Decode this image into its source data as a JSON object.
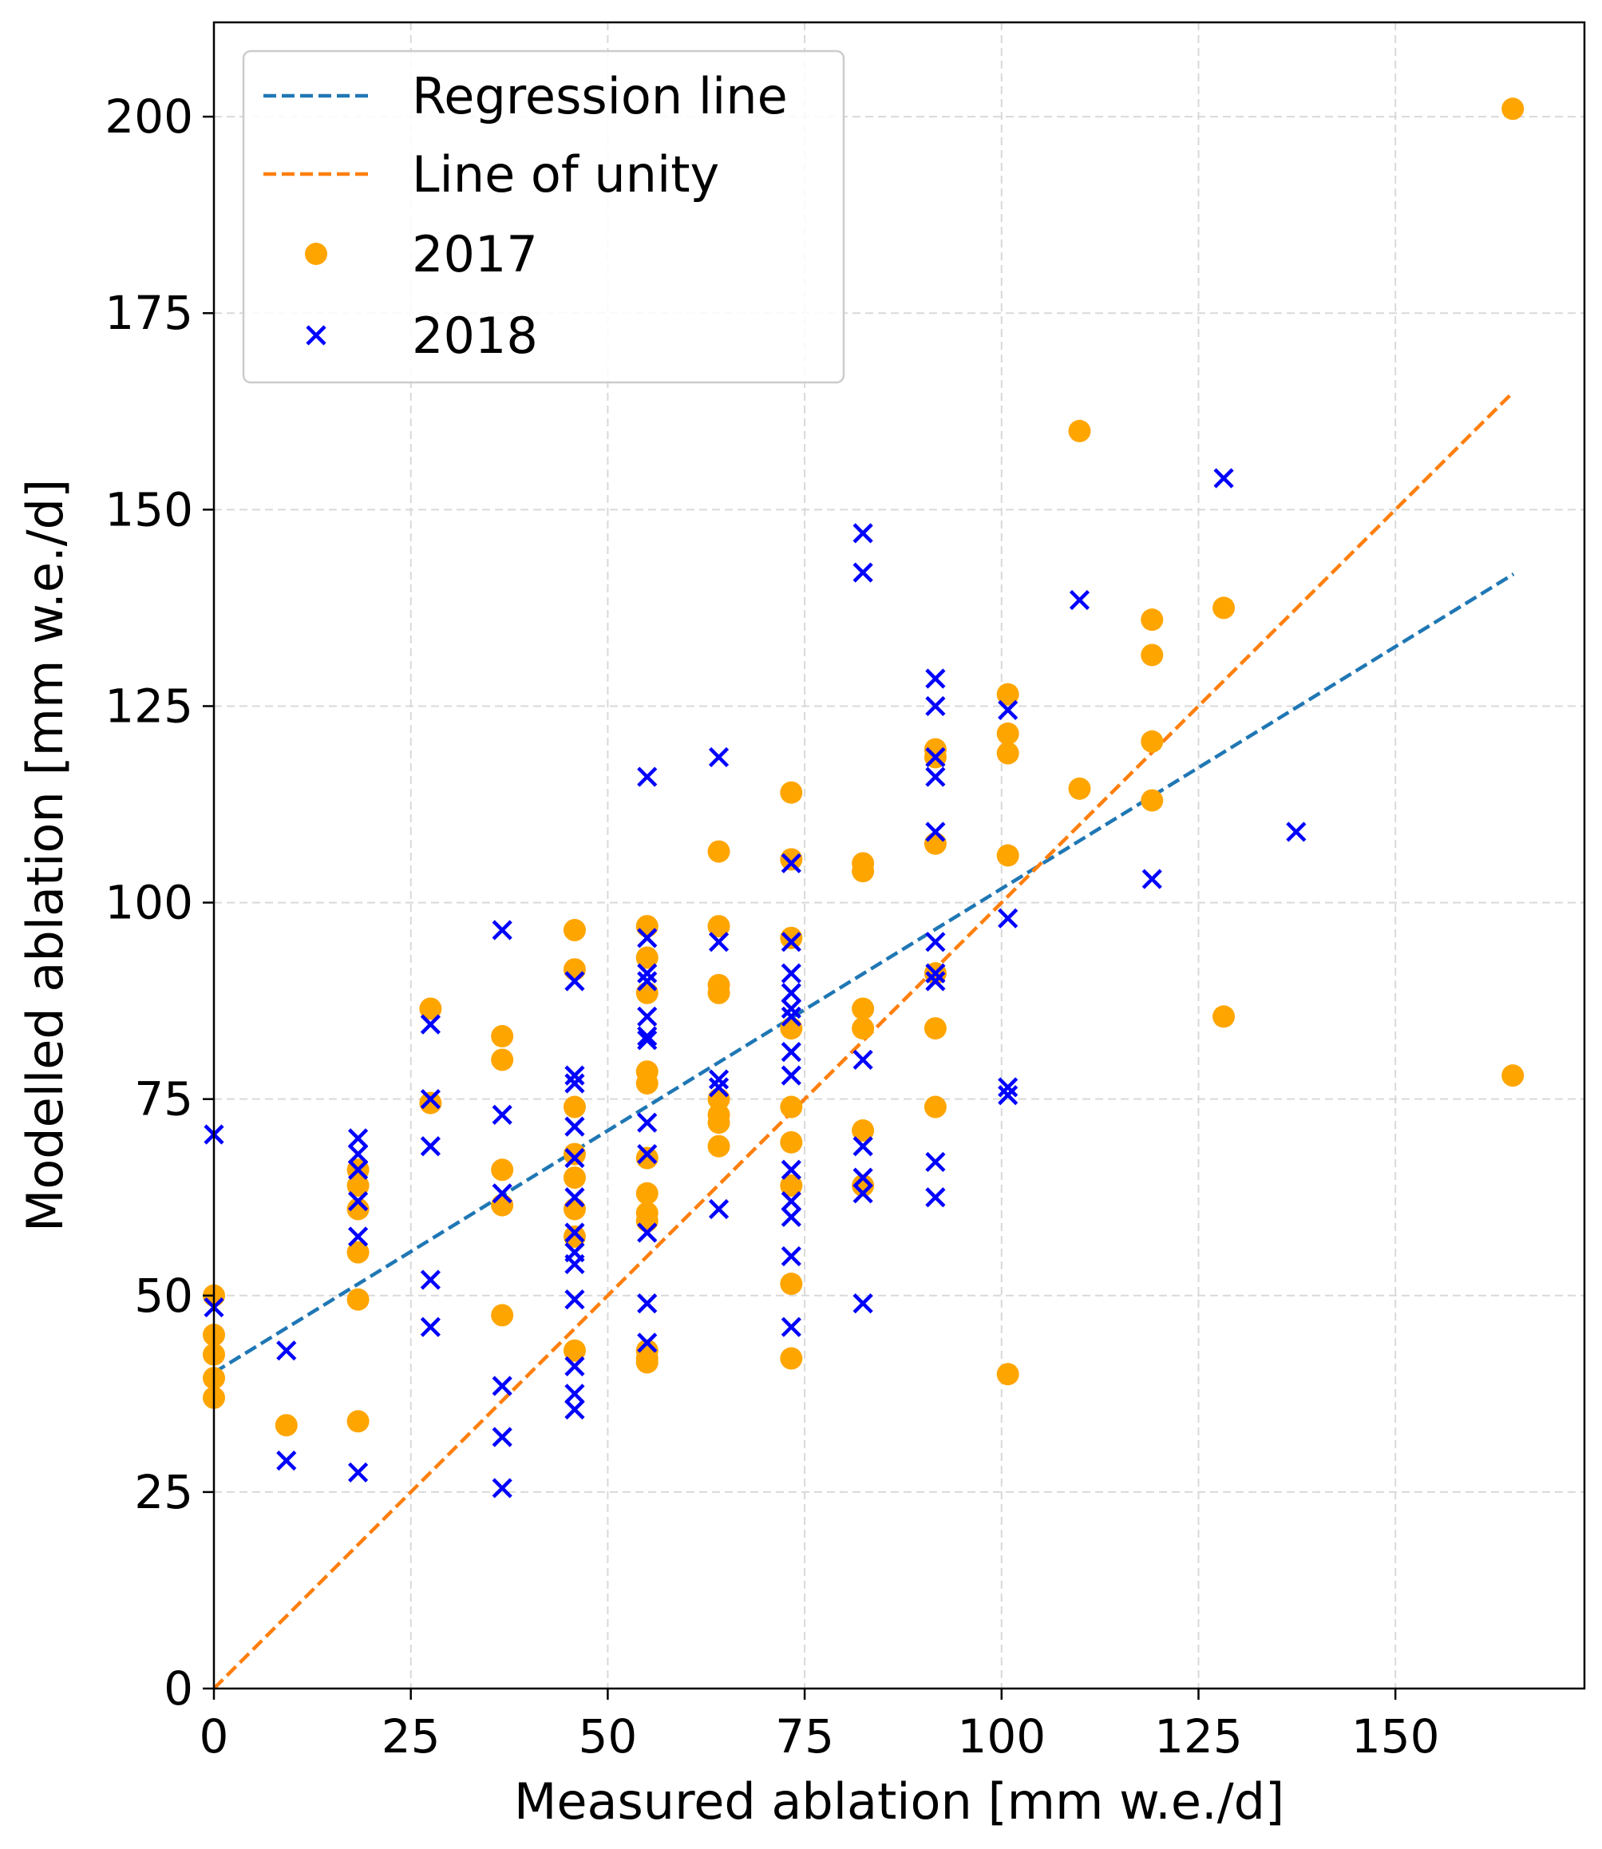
{
  "chart_data": {
    "type": "scatter",
    "xlabel": "Measured ablation [mm w.e./d]",
    "ylabel": "Modelled ablation [mm w.e./d]",
    "xlim": [
      0,
      174
    ],
    "ylim": [
      0,
      212
    ],
    "xticks": [
      0,
      25,
      50,
      75,
      100,
      125,
      150
    ],
    "yticks": [
      0,
      25,
      50,
      75,
      100,
      125,
      150,
      175,
      200
    ],
    "grid": true,
    "legend_position": "top-left",
    "colors": {
      "regression": "#1f77b4",
      "unity": "#ff7f0e",
      "s2017": "#ffa500",
      "s2018": "#0000ff",
      "grid": "#d9d9d9"
    },
    "lines": [
      {
        "name": "Regression line",
        "style": "dashed",
        "x": [
          0,
          165
        ],
        "y": [
          40.2,
          141.8
        ]
      },
      {
        "name": "Line of unity",
        "style": "dashed",
        "x": [
          0,
          165
        ],
        "y": [
          0,
          165
        ]
      }
    ],
    "series": [
      {
        "name": "2017",
        "marker": "circle",
        "points": [
          [
            0,
            50
          ],
          [
            0,
            45
          ],
          [
            0,
            42.5
          ],
          [
            0,
            39.5
          ],
          [
            0,
            37
          ],
          [
            9.2,
            33.5
          ],
          [
            18.3,
            66
          ],
          [
            18.3,
            64
          ],
          [
            18.3,
            61
          ],
          [
            18.3,
            55.5
          ],
          [
            18.3,
            49.5
          ],
          [
            18.3,
            34
          ],
          [
            27.5,
            86.5
          ],
          [
            27.5,
            74.5
          ],
          [
            36.6,
            83
          ],
          [
            36.6,
            80
          ],
          [
            36.6,
            66
          ],
          [
            36.6,
            61.5
          ],
          [
            36.6,
            47.5
          ],
          [
            45.8,
            96.5
          ],
          [
            45.8,
            91.5
          ],
          [
            45.8,
            74
          ],
          [
            45.8,
            68
          ],
          [
            45.8,
            65
          ],
          [
            45.8,
            61
          ],
          [
            45.8,
            57.5
          ],
          [
            45.8,
            43
          ],
          [
            55,
            97
          ],
          [
            55,
            93
          ],
          [
            55,
            88.5
          ],
          [
            55,
            78.5
          ],
          [
            55,
            77
          ],
          [
            55,
            67.5
          ],
          [
            55,
            63
          ],
          [
            55,
            60.5
          ],
          [
            55,
            59.5
          ],
          [
            55,
            43
          ],
          [
            55,
            42
          ],
          [
            55,
            41.5
          ],
          [
            64.1,
            106.5
          ],
          [
            64.1,
            97
          ],
          [
            64.1,
            89.5
          ],
          [
            64.1,
            88.5
          ],
          [
            64.1,
            75
          ],
          [
            64.1,
            73
          ],
          [
            64.1,
            72
          ],
          [
            64.1,
            69
          ],
          [
            73.3,
            114
          ],
          [
            73.3,
            105.5
          ],
          [
            73.3,
            95.5
          ],
          [
            73.3,
            84
          ],
          [
            73.3,
            74
          ],
          [
            73.3,
            69.5
          ],
          [
            73.3,
            64
          ],
          [
            73.3,
            51.5
          ],
          [
            73.3,
            42
          ],
          [
            82.4,
            105
          ],
          [
            82.4,
            104
          ],
          [
            82.4,
            86.5
          ],
          [
            82.4,
            84
          ],
          [
            82.4,
            71
          ],
          [
            82.4,
            64
          ],
          [
            91.6,
            119.5
          ],
          [
            91.6,
            118.5
          ],
          [
            91.6,
            107.5
          ],
          [
            91.6,
            91
          ],
          [
            91.6,
            84
          ],
          [
            91.6,
            74
          ],
          [
            100.8,
            126.5
          ],
          [
            100.8,
            121.5
          ],
          [
            100.8,
            119
          ],
          [
            100.8,
            106
          ],
          [
            100.8,
            40
          ],
          [
            109.9,
            160
          ],
          [
            109.9,
            114.5
          ],
          [
            119.1,
            136
          ],
          [
            119.1,
            131.5
          ],
          [
            119.1,
            120.5
          ],
          [
            119.1,
            113
          ],
          [
            128.2,
            137.5
          ],
          [
            128.2,
            85.5
          ],
          [
            164.9,
            201
          ],
          [
            164.9,
            78
          ]
        ]
      },
      {
        "name": "2018",
        "marker": "x",
        "points": [
          [
            0,
            70.5
          ],
          [
            0,
            48.5
          ],
          [
            9.2,
            43
          ],
          [
            9.2,
            29
          ],
          [
            18.3,
            70
          ],
          [
            18.3,
            68
          ],
          [
            18.3,
            66
          ],
          [
            18.3,
            62
          ],
          [
            18.3,
            57.5
          ],
          [
            18.3,
            27.5
          ],
          [
            27.5,
            84.5
          ],
          [
            27.5,
            75
          ],
          [
            27.5,
            69
          ],
          [
            27.5,
            52
          ],
          [
            27.5,
            46
          ],
          [
            36.6,
            96.5
          ],
          [
            36.6,
            73
          ],
          [
            36.6,
            63
          ],
          [
            36.6,
            38.5
          ],
          [
            36.6,
            32
          ],
          [
            36.6,
            25.5
          ],
          [
            45.8,
            90
          ],
          [
            45.8,
            78
          ],
          [
            45.8,
            77
          ],
          [
            45.8,
            71.5
          ],
          [
            45.8,
            67.5
          ],
          [
            45.8,
            62.5
          ],
          [
            45.8,
            58
          ],
          [
            45.8,
            55.5
          ],
          [
            45.8,
            54
          ],
          [
            45.8,
            49.5
          ],
          [
            45.8,
            41
          ],
          [
            45.8,
            37.5
          ],
          [
            45.8,
            35.5
          ],
          [
            55,
            116
          ],
          [
            55,
            95.5
          ],
          [
            55,
            91
          ],
          [
            55,
            90
          ],
          [
            55,
            85.5
          ],
          [
            55,
            83
          ],
          [
            55,
            82.5
          ],
          [
            55,
            72
          ],
          [
            55,
            68
          ],
          [
            55,
            58
          ],
          [
            55,
            49
          ],
          [
            55,
            44
          ],
          [
            64.1,
            118.5
          ],
          [
            64.1,
            95
          ],
          [
            64.1,
            77.5
          ],
          [
            64.1,
            76.5
          ],
          [
            64.1,
            61
          ],
          [
            73.3,
            105
          ],
          [
            73.3,
            95
          ],
          [
            73.3,
            91
          ],
          [
            73.3,
            88.5
          ],
          [
            73.3,
            86.5
          ],
          [
            73.3,
            85.5
          ],
          [
            73.3,
            81
          ],
          [
            73.3,
            78
          ],
          [
            73.3,
            66
          ],
          [
            73.3,
            62
          ],
          [
            73.3,
            60
          ],
          [
            73.3,
            55
          ],
          [
            73.3,
            46
          ],
          [
            82.4,
            147
          ],
          [
            82.4,
            142
          ],
          [
            82.4,
            80
          ],
          [
            82.4,
            69
          ],
          [
            82.4,
            65
          ],
          [
            82.4,
            63
          ],
          [
            82.4,
            49
          ],
          [
            91.6,
            128.5
          ],
          [
            91.6,
            125
          ],
          [
            91.6,
            118.5
          ],
          [
            91.6,
            116
          ],
          [
            91.6,
            109
          ],
          [
            91.6,
            95
          ],
          [
            91.6,
            91
          ],
          [
            91.6,
            90
          ],
          [
            91.6,
            67
          ],
          [
            91.6,
            62.5
          ],
          [
            100.8,
            124.5
          ],
          [
            100.8,
            98
          ],
          [
            100.8,
            76.5
          ],
          [
            100.8,
            75.5
          ],
          [
            109.9,
            138.5
          ],
          [
            119.1,
            103
          ],
          [
            128.2,
            154
          ],
          [
            137.4,
            109
          ]
        ]
      }
    ]
  }
}
